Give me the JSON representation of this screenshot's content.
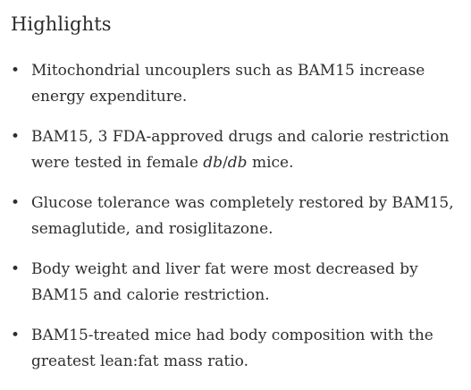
{
  "section": {
    "title": "Highlights"
  },
  "highlights": [
    {
      "bullet": "•",
      "text": "Mitochondrial uncouplers such as BAM15 increase energy expenditure."
    },
    {
      "bullet": "•",
      "text_before": "BAM15, 3 FDA-approved drugs and calorie restriction were tested in female ",
      "text_italic_1": "db",
      "text_slash": "/",
      "text_italic_2": "db",
      "text_after": " mice."
    },
    {
      "bullet": "•",
      "text": "Glucose tolerance was completely restored by BAM15, semaglutide, and rosiglitazone."
    },
    {
      "bullet": "•",
      "text": "Body weight and liver fat were most decreased by BAM15 and calorie restriction."
    },
    {
      "bullet": "•",
      "text": "BAM15-treated mice had body composition with the greatest lean:fat mass ratio."
    }
  ]
}
